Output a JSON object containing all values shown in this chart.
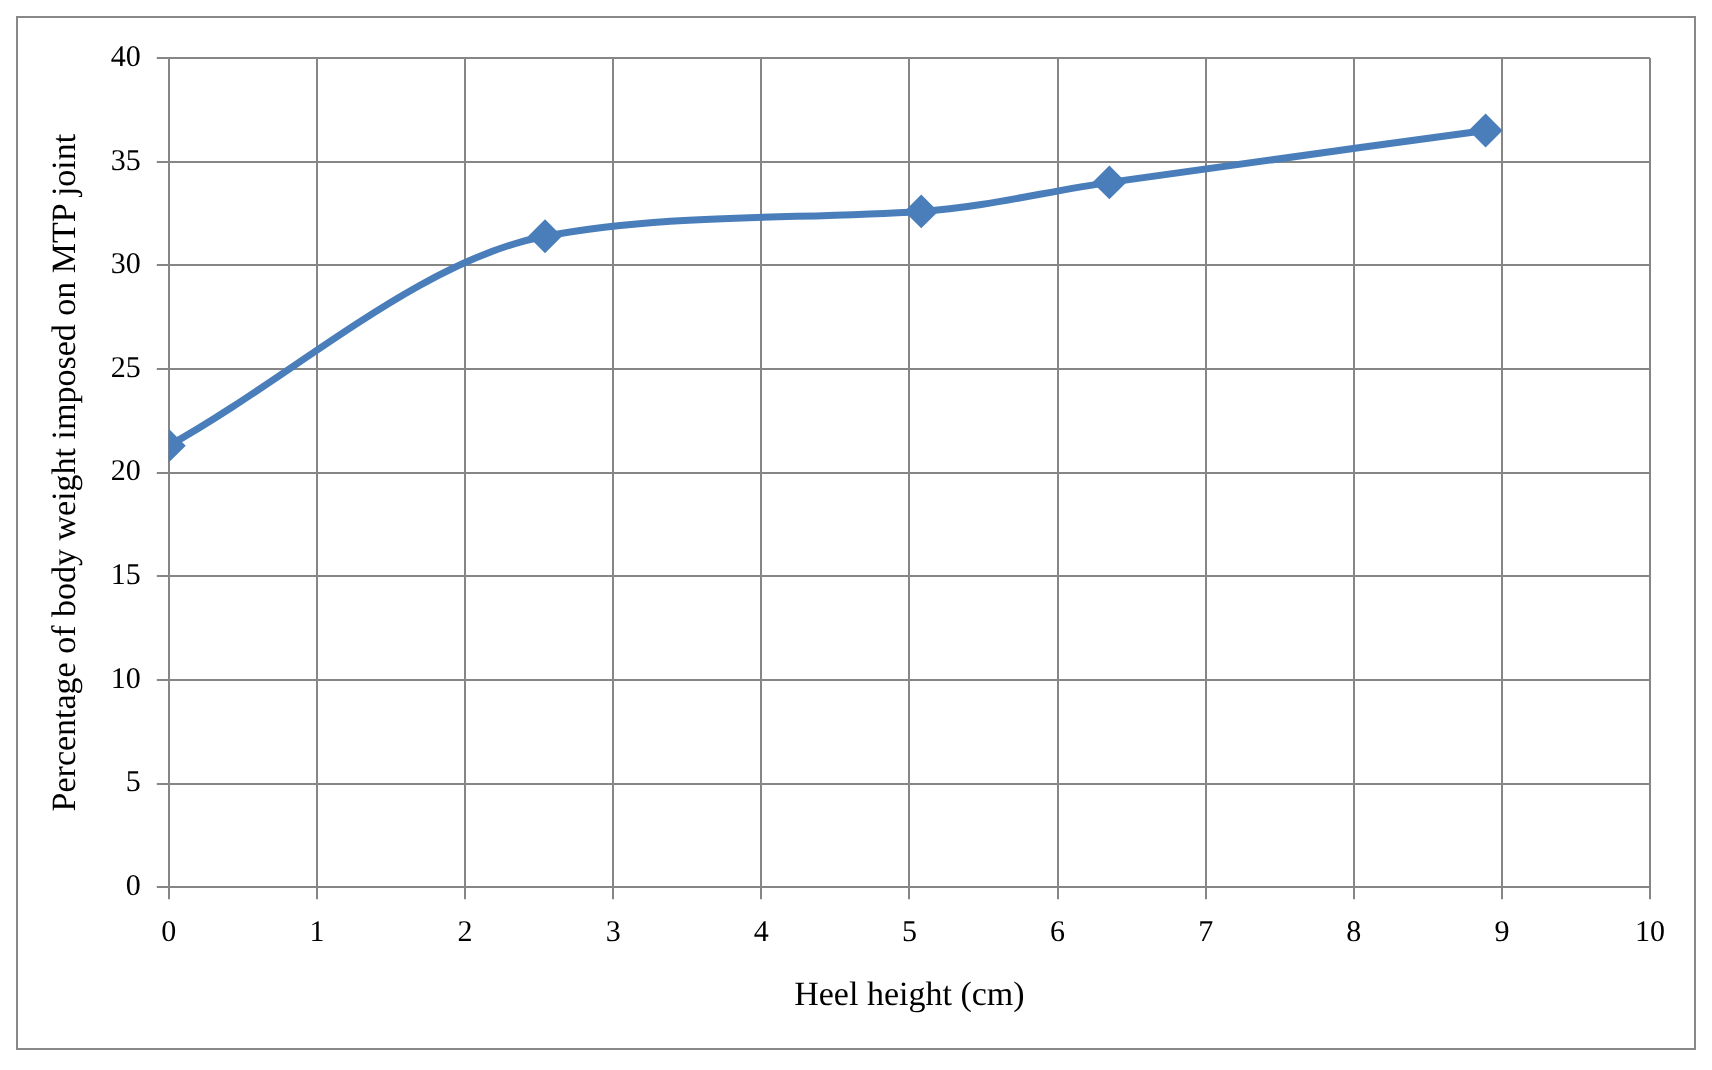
{
  "chart_data": {
    "type": "line",
    "xlabel": "Heel height (cm)",
    "ylabel": "Percentage of body weight imposed on MTP joint",
    "x": [
      0,
      2.54,
      5.08,
      6.35,
      8.89
    ],
    "series": [
      {
        "color": "#4a7ebb",
        "values": [
          21.3,
          31.4,
          32.6,
          34.0,
          36.5
        ]
      }
    ],
    "xlim": [
      0,
      10
    ],
    "xticks": [
      0,
      1,
      2,
      3,
      4,
      5,
      6,
      7,
      8,
      9,
      10
    ],
    "ylim": [
      0,
      40
    ],
    "yticks": [
      0,
      5,
      10,
      15,
      20,
      25,
      30,
      35,
      40
    ],
    "grid": true,
    "legend": false,
    "marker": "diamond",
    "line_style": "solid"
  }
}
